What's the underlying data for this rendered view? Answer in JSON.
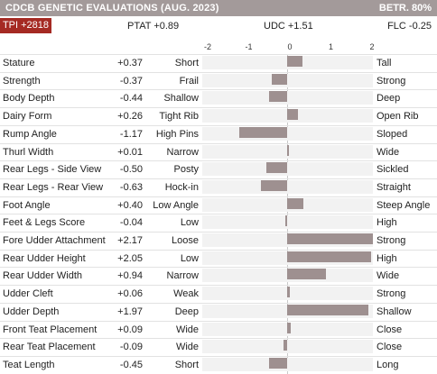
{
  "header": {
    "title": "CDCB GENETIC EVALUATIONS (AUG. 2023)",
    "reliability": "BETR. 80%"
  },
  "summary": {
    "tpi": "TPI +2818",
    "ptat": "PTAT +0.89",
    "udc": "UDC +1.51",
    "flc": "FLC -0.25"
  },
  "colors": {
    "header_bg": "#a39a9a",
    "tpi_bg": "#a52a23",
    "bar": "#9e9090",
    "track": "#f2f2f2"
  },
  "chart_data": {
    "type": "bar",
    "orientation": "horizontal",
    "xlim": [
      -2,
      2
    ],
    "tick_labels": [
      "-2",
      "-1",
      "0",
      "1",
      "2"
    ],
    "traits": [
      {
        "name": "Stature",
        "value": 0.37,
        "value_label": "+0.37",
        "low": "Short",
        "high": "Tall"
      },
      {
        "name": "Strength",
        "value": -0.37,
        "value_label": "-0.37",
        "low": "Frail",
        "high": "Strong"
      },
      {
        "name": "Body Depth",
        "value": -0.44,
        "value_label": "-0.44",
        "low": "Shallow",
        "high": "Deep"
      },
      {
        "name": "Dairy Form",
        "value": 0.26,
        "value_label": "+0.26",
        "low": "Tight Rib",
        "high": "Open Rib"
      },
      {
        "name": "Rump Angle",
        "value": -1.17,
        "value_label": "-1.17",
        "low": "High Pins",
        "high": "Sloped"
      },
      {
        "name": "Thurl Width",
        "value": 0.01,
        "value_label": "+0.01",
        "low": "Narrow",
        "high": "Wide"
      },
      {
        "name": "Rear Legs - Side View",
        "value": -0.5,
        "value_label": "-0.50",
        "low": "Posty",
        "high": "Sickled"
      },
      {
        "name": "Rear Legs - Rear View",
        "value": -0.63,
        "value_label": "-0.63",
        "low": "Hock-in",
        "high": "Straight"
      },
      {
        "name": "Foot Angle",
        "value": 0.4,
        "value_label": "+0.40",
        "low": "Low Angle",
        "high": "Steep Angle"
      },
      {
        "name": "Feet & Legs Score",
        "value": -0.04,
        "value_label": "-0.04",
        "low": "Low",
        "high": "High"
      },
      {
        "name": "Fore Udder Attachment",
        "value": 2.17,
        "value_label": "+2.17",
        "low": "Loose",
        "high": "Strong"
      },
      {
        "name": "Rear Udder Height",
        "value": 2.05,
        "value_label": "+2.05",
        "low": "Low",
        "high": "High"
      },
      {
        "name": "Rear Udder Width",
        "value": 0.94,
        "value_label": "+0.94",
        "low": "Narrow",
        "high": "Wide"
      },
      {
        "name": "Udder Cleft",
        "value": 0.06,
        "value_label": "+0.06",
        "low": "Weak",
        "high": "Strong"
      },
      {
        "name": "Udder Depth",
        "value": 1.97,
        "value_label": "+1.97",
        "low": "Deep",
        "high": "Shallow"
      },
      {
        "name": "Front Teat Placement",
        "value": 0.09,
        "value_label": "+0.09",
        "low": "Wide",
        "high": "Close"
      },
      {
        "name": "Rear Teat Placement",
        "value": -0.09,
        "value_label": "-0.09",
        "low": "Wide",
        "high": "Close"
      },
      {
        "name": "Teat Length",
        "value": -0.45,
        "value_label": "-0.45",
        "low": "Short",
        "high": "Long"
      }
    ]
  }
}
